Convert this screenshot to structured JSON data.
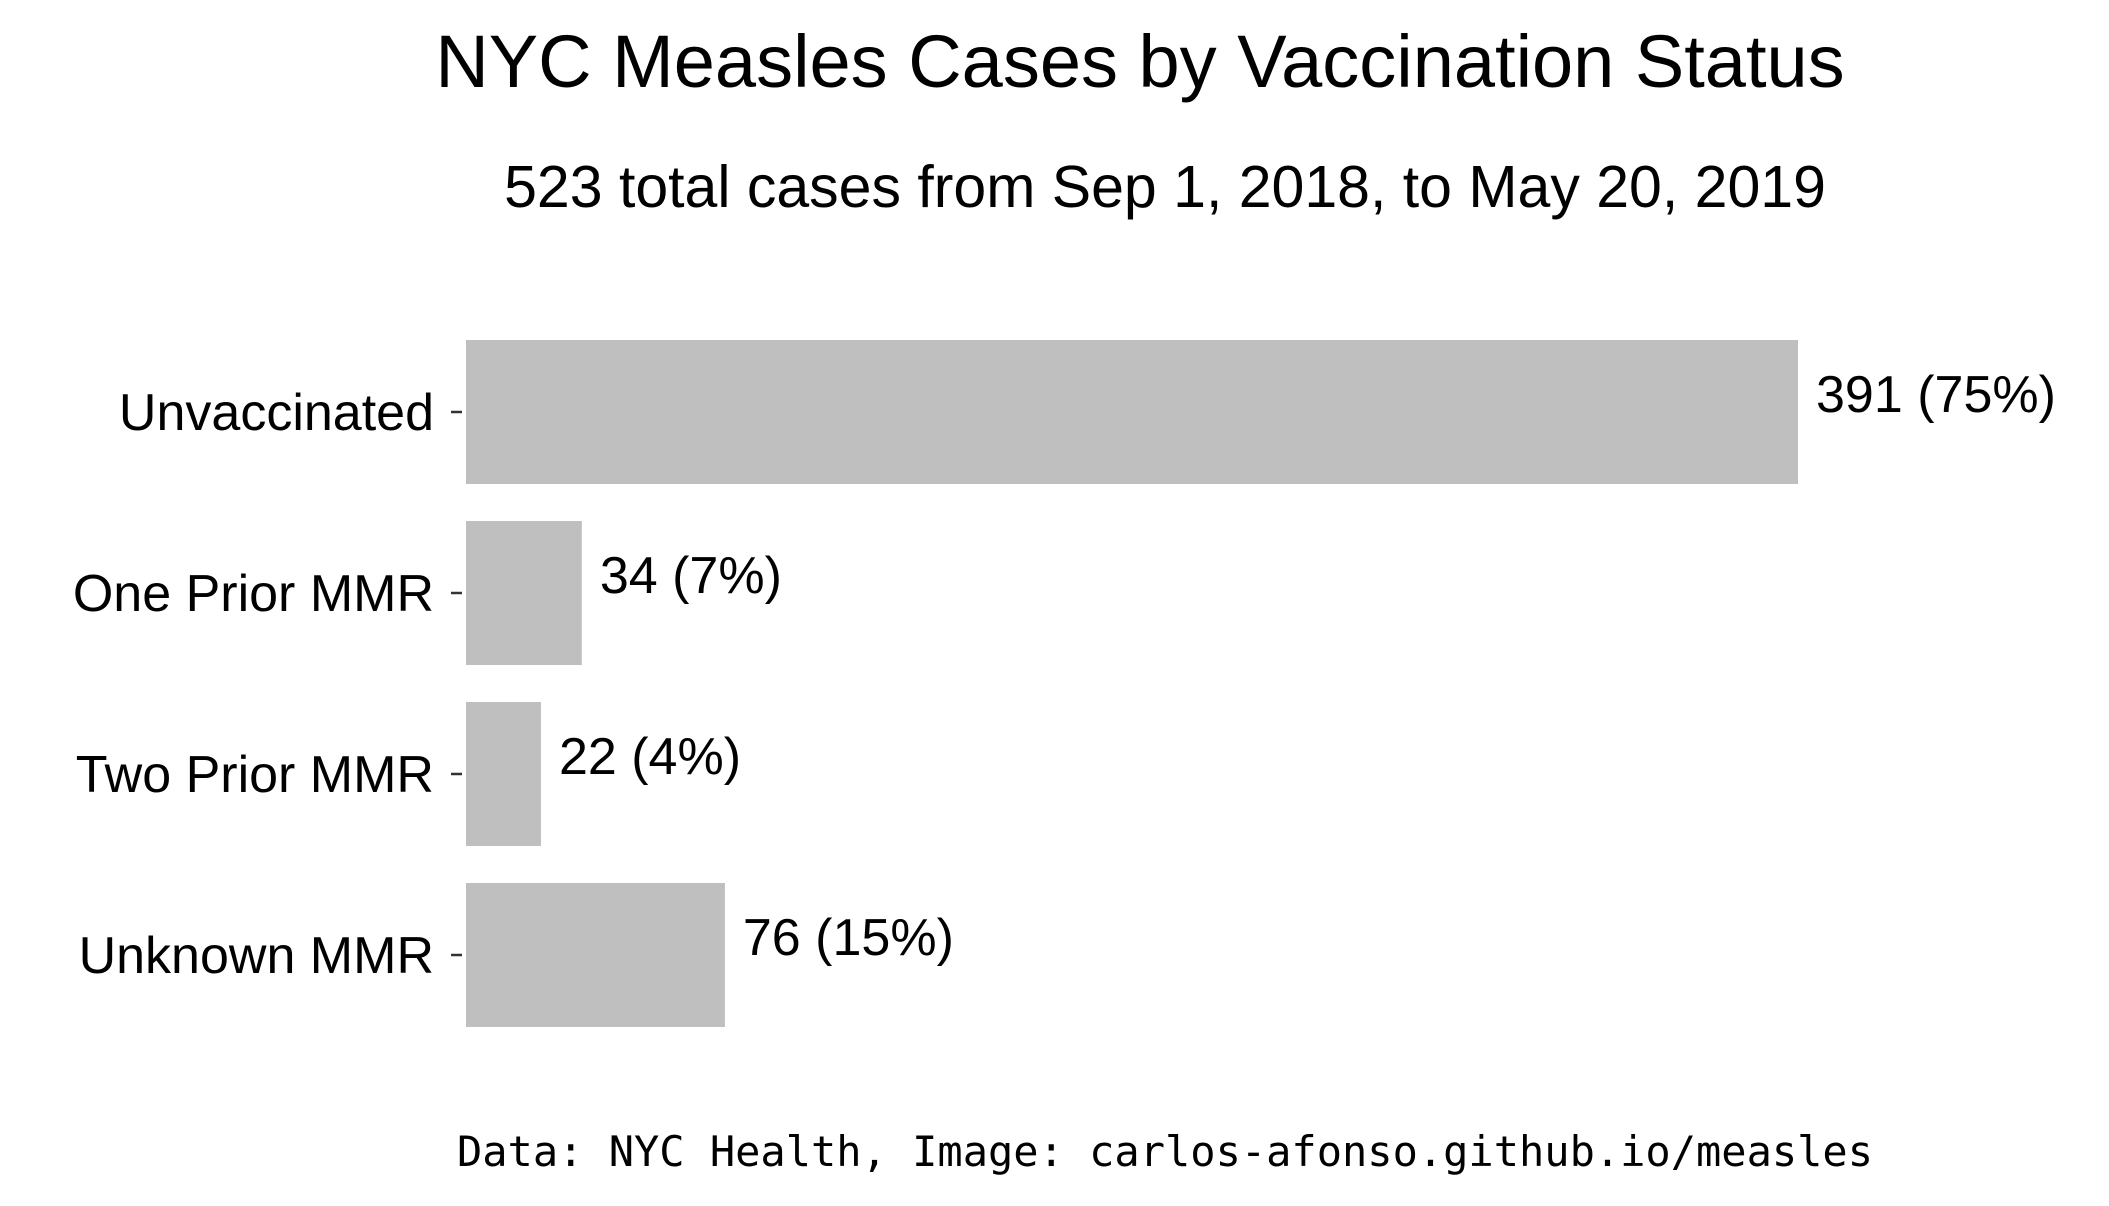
{
  "chart_data": {
    "type": "bar",
    "orientation": "horizontal",
    "title": "NYC Measles Cases by Vaccination Status",
    "subtitle": "523 total cases from Sep 1, 2018, to May 20, 2019",
    "caption": "Data: NYC Health, Image: carlos-afonso.github.io/measles",
    "categories": [
      "Unvaccinated",
      "One Prior MMR",
      "Two Prior MMR",
      "Unknown MMR"
    ],
    "values": [
      391,
      34,
      22,
      76
    ],
    "data_labels": [
      "391 (75%)",
      "34 (7%)",
      "22 (4%)",
      "76 (15%)"
    ],
    "xlim": [
      0,
      391
    ],
    "bar_color": "#bfbfbf",
    "grid": false,
    "legend": "none"
  }
}
